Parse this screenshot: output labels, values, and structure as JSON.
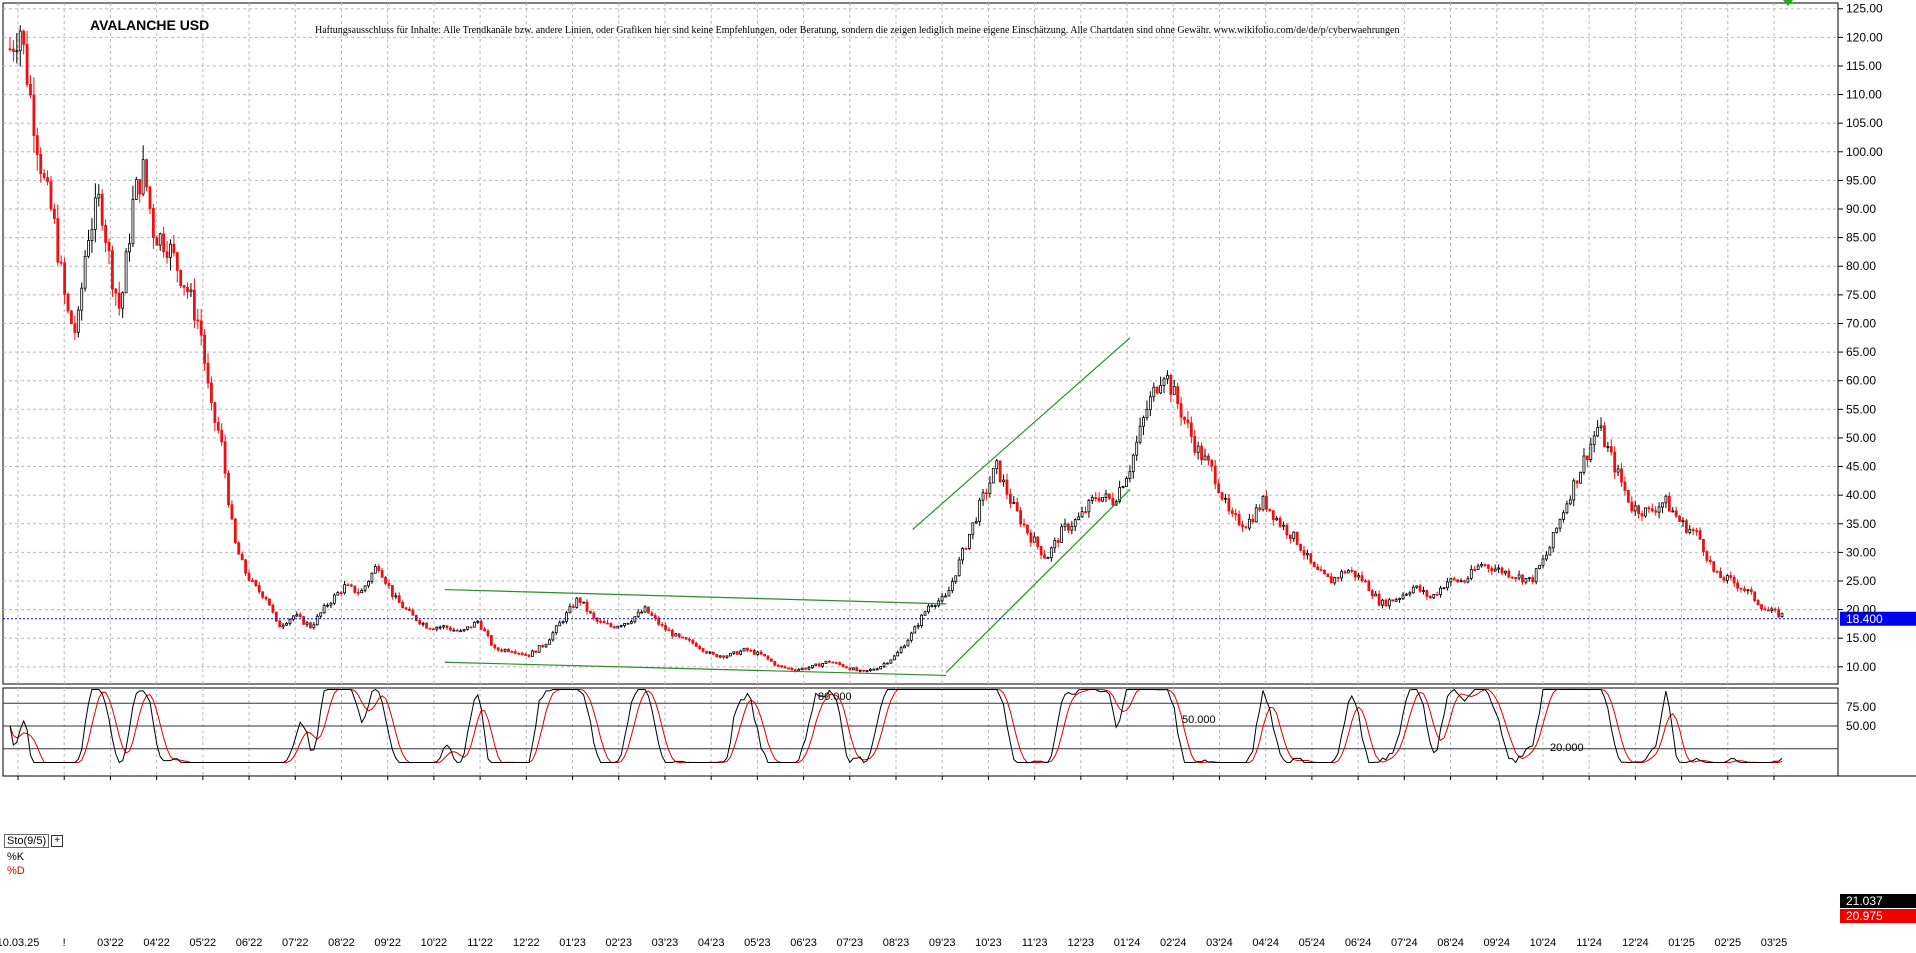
{
  "header": {
    "title": "AVALANCHE USD",
    "disclaimer": "Haftungsausschluss für Inhalte: Alle Trendkanäle bzw. andere Linien, oder Grafiken hier sind keine Empfehlungen, oder Beratung, sondern die zeigen lediglich meine eigene Einschätzung. Alle Chartdaten sind ohne Gewähr. www.wikifolio.com/de/de/p/cyberwaehrungen"
  },
  "indicator": {
    "name": "Sto(9/5)",
    "plus": "+",
    "k_label": "%K",
    "d_label": "%D"
  },
  "colors": {
    "up_candle": "#000000",
    "down_candle": "#ee1111",
    "trendline": "#2e8b2e",
    "current_price_line": "#0000dd",
    "k_line": "#000000",
    "d_line": "#e00000",
    "k_badge": "#000000",
    "d_badge": "#ee0000",
    "price_badge": "#0000ee"
  },
  "chart_data": [
    {
      "type": "candlestick",
      "title": "AVALANCHE USD",
      "ylim": [
        7,
        126
      ],
      "y_ticks": [
        "125.00",
        "120.00",
        "115.00",
        "110.00",
        "105.00",
        "100.00",
        "95.00",
        "90.00",
        "85.00",
        "80.00",
        "75.00",
        "70.00",
        "65.00",
        "60.00",
        "55.00",
        "50.00",
        "45.00",
        "40.00",
        "35.00",
        "30.00",
        "25.00",
        "20.00",
        "15.00",
        "10.00"
      ],
      "x_ticks": [
        "10.03.25",
        "!",
        "03'22",
        "04'22",
        "05'22",
        "06'22",
        "07'22",
        "08'22",
        "09'22",
        "10'22",
        "11'22",
        "12'22",
        "01'23",
        "02'23",
        "03'23",
        "04'23",
        "05'23",
        "06'23",
        "07'23",
        "08'23",
        "09'23",
        "10'23",
        "11'23",
        "12'23",
        "01'24",
        "02'24",
        "03'24",
        "04'24",
        "05'24",
        "06'24",
        "07'24",
        "08'24",
        "09'24",
        "10'24",
        "11'24",
        "12'24",
        "01'25",
        "02'25",
        "03'25"
      ],
      "grid": true,
      "current_price": 18.4,
      "current_price_label": "18.400",
      "closes": [
        [
          0,
          118
        ],
        [
          0.3,
          122
        ],
        [
          0.6,
          110
        ],
        [
          1.0,
          95
        ],
        [
          1.3,
          88
        ],
        [
          1.7,
          72
        ],
        [
          2.0,
          68
        ],
        [
          2.3,
          85
        ],
        [
          2.7,
          92
        ],
        [
          3.0,
          80
        ],
        [
          3.3,
          72
        ],
        [
          3.7,
          92
        ],
        [
          4.0,
          97
        ],
        [
          4.3,
          86
        ],
        [
          4.7,
          84
        ],
        [
          5.0,
          80
        ],
        [
          5.3,
          76
        ],
        [
          5.7,
          69
        ],
        [
          6.0,
          55
        ],
        [
          6.3,
          50
        ],
        [
          6.7,
          32
        ],
        [
          7.0,
          27
        ],
        [
          7.3,
          24
        ],
        [
          7.7,
          22
        ],
        [
          8.0,
          17
        ],
        [
          8.5,
          19
        ],
        [
          9.0,
          17
        ],
        [
          9.5,
          21
        ],
        [
          10.0,
          24
        ],
        [
          10.5,
          23
        ],
        [
          11.0,
          28
        ],
        [
          11.5,
          22
        ],
        [
          12.0,
          19
        ],
        [
          12.5,
          17
        ],
        [
          13.0,
          17
        ],
        [
          13.5,
          16
        ],
        [
          14.0,
          18
        ],
        [
          14.5,
          13
        ],
        [
          15.0,
          13
        ],
        [
          15.5,
          12
        ],
        [
          16.0,
          14
        ],
        [
          16.5,
          18
        ],
        [
          17.0,
          22
        ],
        [
          17.5,
          18
        ],
        [
          18.0,
          17
        ],
        [
          18.5,
          18
        ],
        [
          19.0,
          20
        ],
        [
          19.5,
          17
        ],
        [
          20.0,
          15
        ],
        [
          20.5,
          14
        ],
        [
          21.0,
          12
        ],
        [
          21.5,
          12
        ],
        [
          22.0,
          13
        ],
        [
          22.5,
          12
        ],
        [
          23.0,
          10
        ],
        [
          23.5,
          9.5
        ],
        [
          24.0,
          10
        ],
        [
          24.5,
          11
        ],
        [
          25.0,
          10
        ],
        [
          25.5,
          9
        ],
        [
          26.0,
          10
        ],
        [
          26.5,
          12
        ],
        [
          27.0,
          16
        ],
        [
          27.5,
          21
        ],
        [
          28.0,
          22
        ],
        [
          28.5,
          30
        ],
        [
          29.0,
          38
        ],
        [
          29.5,
          45
        ],
        [
          30.0,
          38
        ],
        [
          30.5,
          33
        ],
        [
          31.0,
          29
        ],
        [
          31.5,
          34
        ],
        [
          32.0,
          36
        ],
        [
          32.5,
          40
        ],
        [
          33.0,
          39
        ],
        [
          33.5,
          45
        ],
        [
          34.0,
          55
        ],
        [
          34.5,
          62
        ],
        [
          35.0,
          55
        ],
        [
          35.5,
          48
        ],
        [
          36.0,
          44
        ],
        [
          36.5,
          36
        ],
        [
          37.0,
          35
        ],
        [
          37.5,
          39
        ],
        [
          38.0,
          35
        ],
        [
          38.5,
          32
        ],
        [
          39.0,
          27
        ],
        [
          39.5,
          25
        ],
        [
          40.0,
          27
        ],
        [
          40.5,
          25
        ],
        [
          41.0,
          21
        ],
        [
          41.5,
          22
        ],
        [
          42.0,
          24
        ],
        [
          42.5,
          22
        ],
        [
          43.0,
          25
        ],
        [
          43.5,
          25
        ],
        [
          44.0,
          28
        ],
        [
          44.5,
          27
        ],
        [
          45.0,
          26
        ],
        [
          45.5,
          25
        ],
        [
          46.0,
          30
        ],
        [
          46.5,
          38
        ],
        [
          47.0,
          45
        ],
        [
          47.5,
          52
        ],
        [
          48.0,
          45
        ],
        [
          48.5,
          38
        ],
        [
          49.0,
          37
        ],
        [
          49.5,
          39
        ],
        [
          50.0,
          35
        ],
        [
          50.5,
          33
        ],
        [
          51.0,
          26
        ],
        [
          51.5,
          25
        ],
        [
          52.0,
          23
        ],
        [
          52.5,
          20
        ],
        [
          53.0,
          19
        ]
      ],
      "trendlines": [
        {
          "name": "",
          "points": [
            [
              13.0,
              23.5
            ],
            [
              28.0,
              21
            ]
          ]
        },
        {
          "name": "",
          "points": [
            [
              13.0,
              10.8
            ],
            [
              28.0,
              8.5
            ]
          ]
        },
        {
          "name": "",
          "points": [
            [
              28.0,
              9
            ],
            [
              33.5,
              41
            ]
          ]
        },
        {
          "name": "",
          "points": [
            [
              27.0,
              34
            ],
            [
              33.5,
              67.5
            ]
          ]
        }
      ]
    },
    {
      "type": "line",
      "name": "Sto(9/5)",
      "ylim": [
        0,
        100
      ],
      "y_ticks": [
        "75.00",
        "50.00"
      ],
      "levels": [
        {
          "value": 80,
          "label": "80.000"
        },
        {
          "value": 50,
          "label": "50.000"
        },
        {
          "value": 20,
          "label": "20.000"
        }
      ],
      "series": [
        {
          "name": "%K",
          "last": 21.037,
          "last_label": "21.037"
        },
        {
          "name": "%D",
          "last": 20.975,
          "last_label": "20.975"
        }
      ]
    }
  ]
}
